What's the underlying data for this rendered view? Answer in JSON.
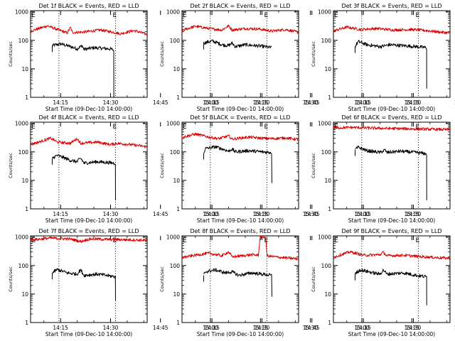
{
  "figure": {
    "panel_titles": [
      "Det 1f BLACK = Events, RED = LLD",
      "Det 2f BLACK = Events, RED = LLD",
      "Det 3f BLACK = Events, RED = LLD",
      "Det 4f BLACK = Events, RED = LLD",
      "Det 5f BLACK = Events, RED = LLD",
      "Det 6f BLACK = Events, RED = LLD",
      "Det 7f BLACK = Events, RED = LLD",
      "Det 8f BLACK = Events, RED = LLD",
      "Det 9f BLACK = Events, RED = LLD"
    ],
    "xlabel": "Start Time (09-Dec-10 14:00:00)",
    "ylabel": "Counts/sec",
    "x_tick_labels": [
      "14:15",
      "14:30",
      "14:45",
      "15:00",
      "15:15",
      "15:30"
    ],
    "y_tick_labels": [
      "1",
      "10",
      "100",
      "1000"
    ],
    "marker_labels": [
      "E",
      "E"
    ],
    "colors": {
      "events": "#000000",
      "lld": "#dd0000",
      "axes": "#000000"
    }
  },
  "chart_data": [
    {
      "type": "line",
      "title": "Det 1f BLACK = Events, RED = LLD",
      "xlabel": "Start Time (09-Dec-10 14:00:00)",
      "ylabel": "Counts/sec",
      "xlim": [
        6,
        41
      ],
      "ylim": [
        1,
        1100
      ],
      "log_y": true,
      "vlines": [
        14.5,
        31.5
      ],
      "series": [
        {
          "name": "Events",
          "color": "#000000",
          "x_start": 12.5,
          "x_end": 31,
          "drop_to": 1.0,
          "points": [
            [
              12.5,
              65
            ],
            [
              15,
              75
            ],
            [
              18,
              60
            ],
            [
              20,
              50
            ],
            [
              21.5,
              65
            ],
            [
              22,
              48
            ],
            [
              25,
              55
            ],
            [
              30,
              50
            ],
            [
              31,
              45
            ]
          ]
        },
        {
          "name": "LLD",
          "color": "#dd0000",
          "x_start": 6,
          "x_end": 41,
          "points": [
            [
              6,
              210
            ],
            [
              9,
              270
            ],
            [
              11,
              320
            ],
            [
              14,
              240
            ],
            [
              17,
              180
            ],
            [
              18,
              280
            ],
            [
              18.5,
              190
            ],
            [
              22,
              195
            ],
            [
              27,
              230
            ],
            [
              31,
              190
            ],
            [
              33,
              170
            ],
            [
              37,
              220
            ],
            [
              41,
              160
            ]
          ]
        }
      ]
    },
    {
      "type": "line",
      "title": "Det 2f BLACK = Events, RED = LLD",
      "xlabel": "Start Time (09-Dec-10 14:00:00)",
      "ylabel": "Counts/sec",
      "xlim": [
        6,
        41
      ],
      "ylim": [
        1,
        1100
      ],
      "log_y": true,
      "vlines": [
        14.5,
        31.5
      ],
      "series": [
        {
          "name": "Events",
          "color": "#000000",
          "x_start": 12.5,
          "x_end": 33,
          "points": [
            [
              12.5,
              80
            ],
            [
              15,
              95
            ],
            [
              18,
              70
            ],
            [
              20,
              65
            ],
            [
              21,
              80
            ],
            [
              22,
              60
            ],
            [
              25,
              70
            ],
            [
              30,
              62
            ],
            [
              33,
              55
            ]
          ]
        },
        {
          "name": "LLD",
          "color": "#dd0000",
          "x_start": 6,
          "x_end": 41,
          "points": [
            [
              6,
              220
            ],
            [
              10,
              310
            ],
            [
              14,
              260
            ],
            [
              18,
              230
            ],
            [
              20,
              320
            ],
            [
              21,
              230
            ],
            [
              25,
              260
            ],
            [
              29,
              250
            ],
            [
              33,
              210
            ],
            [
              37,
              240
            ],
            [
              41,
              190
            ]
          ]
        }
      ]
    },
    {
      "type": "line",
      "title": "Det 3f BLACK = Events, RED = LLD",
      "xlabel": "Start Time (09-Dec-10 14:00:00)",
      "ylabel": "Counts/sec",
      "xlim": [
        6,
        41
      ],
      "ylim": [
        1,
        1100
      ],
      "log_y": true,
      "vlines": [
        14.5,
        31.5
      ],
      "series": [
        {
          "name": "Events",
          "color": "#000000",
          "x_start": 12.5,
          "x_end": 34,
          "drop_to": 2.0,
          "points": [
            [
              12.5,
              60
            ],
            [
              13.5,
              90
            ],
            [
              16,
              70
            ],
            [
              20,
              60
            ],
            [
              23,
              70
            ],
            [
              27,
              65
            ],
            [
              31,
              60
            ],
            [
              34,
              55
            ]
          ]
        },
        {
          "name": "LLD",
          "color": "#dd0000",
          "x_start": 6,
          "x_end": 41,
          "points": [
            [
              6,
              210
            ],
            [
              10,
              290
            ],
            [
              14,
              240
            ],
            [
              19,
              260
            ],
            [
              24,
              230
            ],
            [
              29,
              240
            ],
            [
              34,
              220
            ],
            [
              37,
              200
            ],
            [
              41,
              180
            ]
          ]
        }
      ]
    },
    {
      "type": "line",
      "title": "Det 4f BLACK = Events, RED = LLD",
      "xlabel": "Start Time (09-Dec-10 14:00:00)",
      "ylabel": "Counts/sec",
      "xlim": [
        6,
        41
      ],
      "ylim": [
        1,
        1100
      ],
      "log_y": true,
      "vlines": [
        14.5,
        31.5
      ],
      "series": [
        {
          "name": "Events",
          "color": "#000000",
          "x_start": 12.5,
          "x_end": 31.5,
          "drop_to": 2.0,
          "points": [
            [
              12.5,
              60
            ],
            [
              14,
              75
            ],
            [
              18,
              50
            ],
            [
              20,
              45
            ],
            [
              21,
              60
            ],
            [
              22,
              40
            ],
            [
              26,
              45
            ],
            [
              31.5,
              40
            ]
          ]
        },
        {
          "name": "LLD",
          "color": "#dd0000",
          "x_start": 6,
          "x_end": 41,
          "points": [
            [
              6,
              180
            ],
            [
              9,
              230
            ],
            [
              12,
              300
            ],
            [
              14,
              220
            ],
            [
              18,
              200
            ],
            [
              20,
              290
            ],
            [
              21,
              200
            ],
            [
              26,
              220
            ],
            [
              30,
              180
            ],
            [
              32,
              200
            ],
            [
              36,
              180
            ],
            [
              41,
              150
            ]
          ]
        }
      ]
    },
    {
      "type": "line",
      "title": "Det 5f BLACK = Events, RED = LLD",
      "xlabel": "Start Time (09-Dec-10 14:00:00)",
      "ylabel": "Counts/sec",
      "xlim": [
        6,
        41
      ],
      "ylim": [
        1,
        1100
      ],
      "log_y": true,
      "vlines": [
        14.5,
        31.5
      ],
      "series": [
        {
          "name": "Events",
          "color": "#000000",
          "x_start": 12.5,
          "x_end": 33,
          "drop_to": 8.0,
          "points": [
            [
              12.5,
              90
            ],
            [
              13,
              130
            ],
            [
              16,
              150
            ],
            [
              20,
              105
            ],
            [
              21,
              125
            ],
            [
              22,
              100
            ],
            [
              26,
              110
            ],
            [
              30,
              100
            ],
            [
              33,
              95
            ]
          ]
        },
        {
          "name": "LLD",
          "color": "#dd0000",
          "x_start": 6,
          "x_end": 41,
          "points": [
            [
              6,
              320
            ],
            [
              10,
              420
            ],
            [
              14,
              330
            ],
            [
              17,
              290
            ],
            [
              20,
              360
            ],
            [
              21,
              280
            ],
            [
              26,
              330
            ],
            [
              30,
              300
            ],
            [
              33,
              290
            ],
            [
              37,
              310
            ],
            [
              41,
              270
            ]
          ]
        }
      ]
    },
    {
      "type": "line",
      "title": "Det 6f BLACK = Events, RED = LLD",
      "xlabel": "Start Time (09-Dec-10 14:00:00)",
      "ylabel": "Counts/sec",
      "xlim": [
        6,
        41
      ],
      "ylim": [
        1,
        1100
      ],
      "log_y": true,
      "vlines": [
        14.5,
        31.5
      ],
      "series": [
        {
          "name": "Events",
          "color": "#000000",
          "x_start": 12.5,
          "x_end": 34,
          "drop_to": 2.0,
          "points": [
            [
              12.5,
              120
            ],
            [
              13.5,
              145
            ],
            [
              16,
              110
            ],
            [
              20,
              95
            ],
            [
              21.5,
              115
            ],
            [
              22,
              95
            ],
            [
              26,
              105
            ],
            [
              31,
              95
            ],
            [
              34,
              85
            ]
          ]
        },
        {
          "name": "LLD",
          "color": "#dd0000",
          "x_start": 6,
          "x_end": 41,
          "points": [
            [
              6,
              700
            ],
            [
              12,
              720
            ],
            [
              18,
              680
            ],
            [
              24,
              660
            ],
            [
              30,
              640
            ],
            [
              36,
              620
            ],
            [
              41,
              600
            ]
          ]
        }
      ]
    },
    {
      "type": "line",
      "title": "Det 7f BLACK = Events, RED = LLD",
      "xlabel": "Start Time (09-Dec-10 14:00:00)",
      "ylabel": "Counts/sec",
      "xlim": [
        6,
        41
      ],
      "ylim": [
        1,
        1100
      ],
      "log_y": true,
      "vlines": [
        14.5,
        31.5
      ],
      "series": [
        {
          "name": "Events",
          "color": "#000000",
          "x_start": 12.5,
          "x_end": 31.5,
          "drop_to": 6.0,
          "points": [
            [
              12.5,
              55
            ],
            [
              14,
              72
            ],
            [
              17,
              55
            ],
            [
              20,
              50
            ],
            [
              21,
              70
            ],
            [
              22,
              45
            ],
            [
              26,
              50
            ],
            [
              31.5,
              40
            ]
          ]
        },
        {
          "name": "LLD",
          "color": "#dd0000",
          "x_start": 6,
          "x_end": 41,
          "points": [
            [
              6,
              780
            ],
            [
              12,
              920
            ],
            [
              18,
              850
            ],
            [
              21,
              700
            ],
            [
              24,
              860
            ],
            [
              30,
              820
            ],
            [
              36,
              800
            ],
            [
              41,
              760
            ]
          ]
        }
      ]
    },
    {
      "type": "line",
      "title": "Det 8f BLACK = Events, RED = LLD",
      "xlabel": "Start Time (09-Dec-10 14:00:00)",
      "ylabel": "Counts/sec",
      "xlim": [
        6,
        41
      ],
      "ylim": [
        1,
        1100
      ],
      "log_y": true,
      "vlines": [
        14.5,
        31.5
      ],
      "series": [
        {
          "name": "Events",
          "color": "#000000",
          "x_start": 12.5,
          "x_end": 33,
          "drop_to": 8.0,
          "points": [
            [
              12.5,
              45
            ],
            [
              13,
              60
            ],
            [
              16,
              70
            ],
            [
              19,
              55
            ],
            [
              21,
              60
            ],
            [
              23,
              45
            ],
            [
              27,
              55
            ],
            [
              30,
              50
            ],
            [
              33,
              45
            ]
          ]
        },
        {
          "name": "LLD",
          "color": "#dd0000",
          "x_start": 6,
          "x_end": 41,
          "points": [
            [
              6,
              190
            ],
            [
              10,
              230
            ],
            [
              14,
              270
            ],
            [
              18,
              220
            ],
            [
              20,
              300
            ],
            [
              21,
              200
            ],
            [
              27,
              240
            ],
            [
              29,
              230
            ],
            [
              29.5,
              1000
            ],
            [
              31,
              1000
            ],
            [
              31.5,
              220
            ],
            [
              34,
              200
            ],
            [
              41,
              170
            ]
          ]
        }
      ]
    },
    {
      "type": "line",
      "title": "Det 9f BLACK = Events, RED = LLD",
      "xlabel": "Start Time (09-Dec-10 14:00:00)",
      "ylabel": "Counts/sec",
      "xlim": [
        6,
        41
      ],
      "ylim": [
        1,
        1100
      ],
      "log_y": true,
      "vlines": [
        14.5,
        31.5
      ],
      "series": [
        {
          "name": "Events",
          "color": "#000000",
          "x_start": 12.5,
          "x_end": 34,
          "drop_to": 4.0,
          "points": [
            [
              12.5,
              50
            ],
            [
              14,
              70
            ],
            [
              18,
              55
            ],
            [
              20,
              50
            ],
            [
              21,
              70
            ],
            [
              22,
              50
            ],
            [
              27,
              55
            ],
            [
              31,
              45
            ],
            [
              34,
              40
            ]
          ]
        },
        {
          "name": "LLD",
          "color": "#dd0000",
          "x_start": 6,
          "x_end": 41,
          "points": [
            [
              6,
              190
            ],
            [
              11,
              300
            ],
            [
              15,
              230
            ],
            [
              20,
              240
            ],
            [
              21,
              290
            ],
            [
              22,
              220
            ],
            [
              27,
              230
            ],
            [
              31,
              210
            ],
            [
              34,
              200
            ],
            [
              37,
              190
            ],
            [
              41,
              180
            ]
          ]
        }
      ]
    }
  ]
}
